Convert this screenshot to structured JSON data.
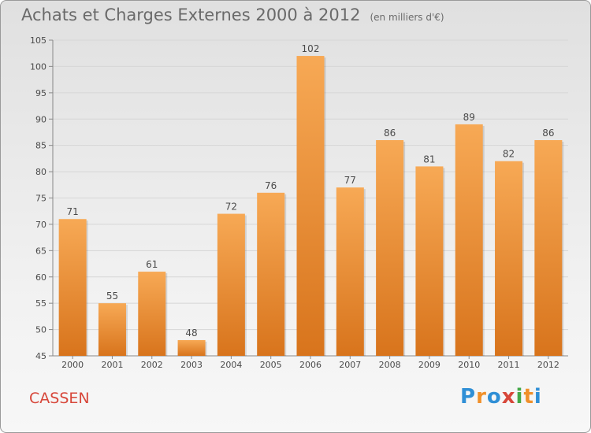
{
  "title": "Achats et Charges Externes 2000 à 2012",
  "unit_note": "(en milliers d'€)",
  "commune": "CASSEN",
  "brand": {
    "text": "Proxiti",
    "letter_colors": [
      "#2f8fd6",
      "#f0902a",
      "#2f8fd6",
      "#d7473a",
      "#43a847",
      "#f0902a",
      "#2f8fd6"
    ]
  },
  "colors": {
    "bar_light": "#f7a955",
    "bar_dark": "#d8741c",
    "grid": "#d6d6d6",
    "title": "#6a6a6a",
    "commune": "#d7473a"
  },
  "chart_data": {
    "type": "bar",
    "categories": [
      "2000",
      "2001",
      "2002",
      "2003",
      "2004",
      "2005",
      "2006",
      "2007",
      "2008",
      "2009",
      "2010",
      "2011",
      "2012"
    ],
    "values": [
      71,
      55,
      61,
      48,
      72,
      76,
      102,
      77,
      86,
      81,
      89,
      82,
      86
    ],
    "ylim": [
      45,
      105
    ],
    "yticks": [
      45,
      50,
      55,
      60,
      65,
      70,
      75,
      80,
      85,
      90,
      95,
      100,
      105
    ],
    "grid": true,
    "data_labels": true
  }
}
